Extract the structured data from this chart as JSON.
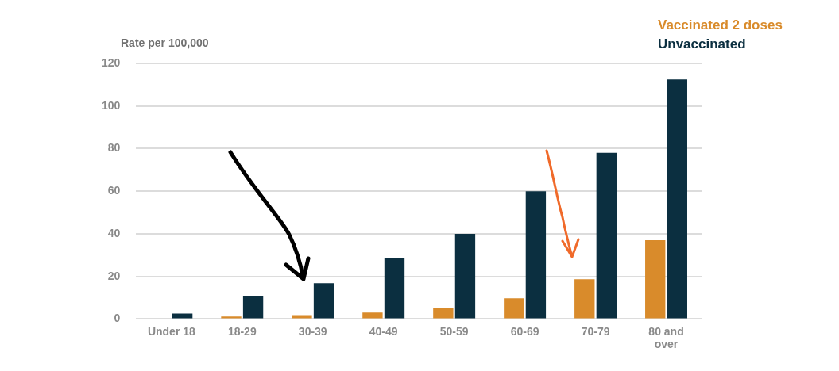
{
  "chart_data": {
    "type": "bar",
    "ylabel": "Rate per 100,000",
    "categories": [
      "Under 18",
      "18-29",
      "30-39",
      "40-49",
      "50-59",
      "60-69",
      "70-79",
      "80 and over"
    ],
    "series": [
      {
        "name": "Vaccinated 2 doses",
        "color": "#d98b2b",
        "values": [
          0,
          1.2,
          1.8,
          3,
          5,
          9.7,
          18.7,
          37
        ]
      },
      {
        "name": "Unvaccinated",
        "color": "#0b2f40",
        "values": [
          2.6,
          10.8,
          16.8,
          28.8,
          40,
          60,
          78,
          112.5
        ]
      }
    ],
    "ylim": [
      0,
      120
    ],
    "yticks": [
      0,
      20,
      40,
      60,
      80,
      100,
      120
    ],
    "grid": "y",
    "legend": "top right"
  }
}
